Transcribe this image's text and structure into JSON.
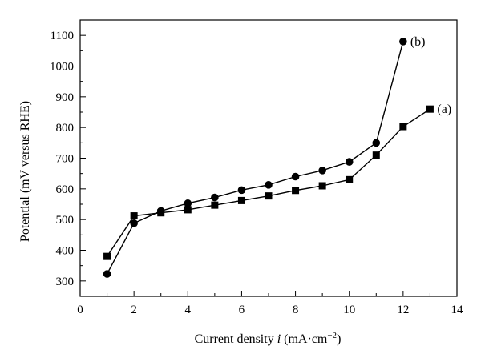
{
  "chart_data": {
    "type": "line",
    "xlabel_parts": {
      "pre": "Current density ",
      "var": "i",
      "unit_open": " (mA·cm",
      "sup": "−2",
      "unit_close": ")"
    },
    "ylabel": "Potential (mV versus RHE)",
    "xlim": [
      0,
      14
    ],
    "ylim": [
      250,
      1150
    ],
    "xticks": [
      0,
      2,
      4,
      6,
      8,
      10,
      12,
      14
    ],
    "yticks": [
      300,
      400,
      500,
      600,
      700,
      800,
      900,
      1000,
      1100
    ],
    "x_minor_step": 1,
    "y_minor_step": 50,
    "grid": false,
    "series": [
      {
        "name": "(a)",
        "marker": "square",
        "color": "#000000",
        "x": [
          1,
          2,
          3,
          4,
          5,
          6,
          7,
          8,
          9,
          10,
          11,
          12,
          13
        ],
        "y": [
          380,
          512,
          522,
          532,
          547,
          562,
          577,
          595,
          610,
          630,
          710,
          803,
          860
        ]
      },
      {
        "name": "(b)",
        "marker": "circle",
        "color": "#000000",
        "x": [
          1,
          2,
          3,
          4,
          5,
          6,
          7,
          8,
          9,
          10,
          11,
          12
        ],
        "y": [
          323,
          488,
          528,
          553,
          572,
          596,
          613,
          640,
          660,
          688,
          750,
          1080
        ]
      }
    ]
  }
}
